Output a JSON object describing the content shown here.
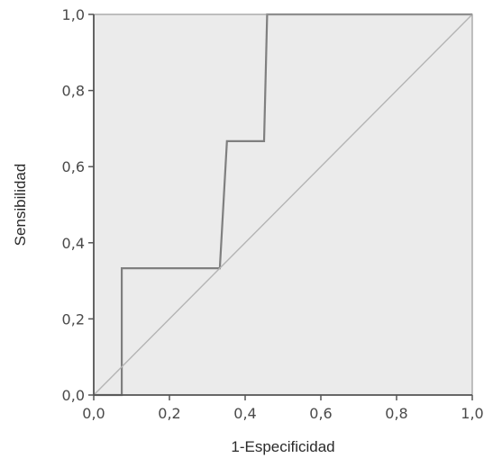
{
  "chart_data": {
    "type": "line",
    "title": "",
    "xlabel": "1-Especificidad",
    "ylabel": "Sensibilidad",
    "xlim": [
      0,
      1
    ],
    "ylim": [
      0,
      1
    ],
    "x_ticks": [
      0,
      0.2,
      0.4,
      0.6,
      0.8,
      1.0
    ],
    "y_ticks": [
      0,
      0.2,
      0.4,
      0.6,
      0.8,
      1.0
    ],
    "x_tick_labels": [
      "0,0",
      "0,2",
      "0,4",
      "0,6",
      "0,8",
      "1,0"
    ],
    "y_tick_labels": [
      "0,0",
      "0,2",
      "0,4",
      "0,6",
      "0,8",
      "1,0"
    ],
    "grid": false,
    "legend": "none",
    "background_color": "#ebebeb",
    "series": [
      {
        "role": "roc-curve",
        "color": "#7f7f7f",
        "points": [
          [
            0.0,
            0.0
          ],
          [
            0.074,
            0.0
          ],
          [
            0.074,
            0.333
          ],
          [
            0.333,
            0.333
          ],
          [
            0.352,
            0.667
          ],
          [
            0.45,
            0.667
          ],
          [
            0.458,
            1.0
          ],
          [
            1.0,
            1.0
          ]
        ]
      },
      {
        "role": "reference-diagonal",
        "color": "#b4b4b4",
        "points": [
          [
            0,
            0
          ],
          [
            1,
            1
          ]
        ]
      }
    ]
  }
}
